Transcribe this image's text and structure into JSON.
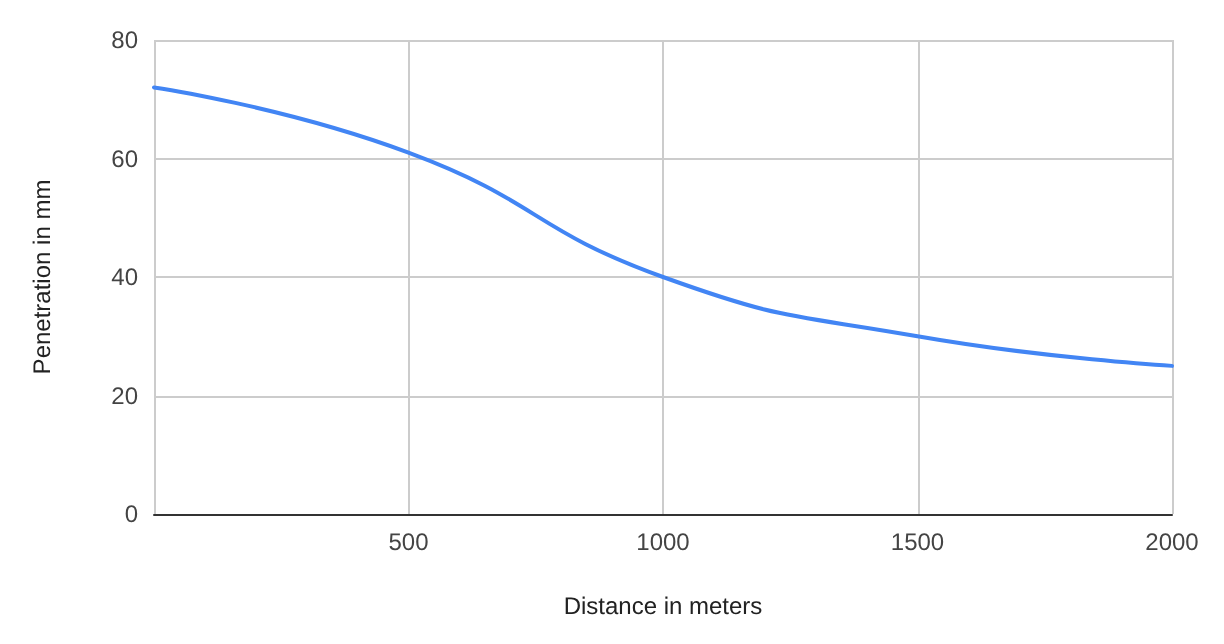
{
  "chart_data": {
    "type": "line",
    "xlabel": "Distance in meters",
    "ylabel": "Penetration in mm",
    "x": [
      0,
      500,
      1000,
      1500,
      2000
    ],
    "series": [
      {
        "color": "#4285f4",
        "values": [
          72,
          61,
          40,
          30,
          25
        ]
      }
    ],
    "xlim": [
      0,
      2000
    ],
    "xticks": [
      500,
      1000,
      1500,
      2000
    ],
    "ylim": [
      0,
      80
    ],
    "yticks": [
      0,
      20,
      40,
      60,
      80
    ],
    "grid": true,
    "marker": "none",
    "line_style": "solid"
  }
}
